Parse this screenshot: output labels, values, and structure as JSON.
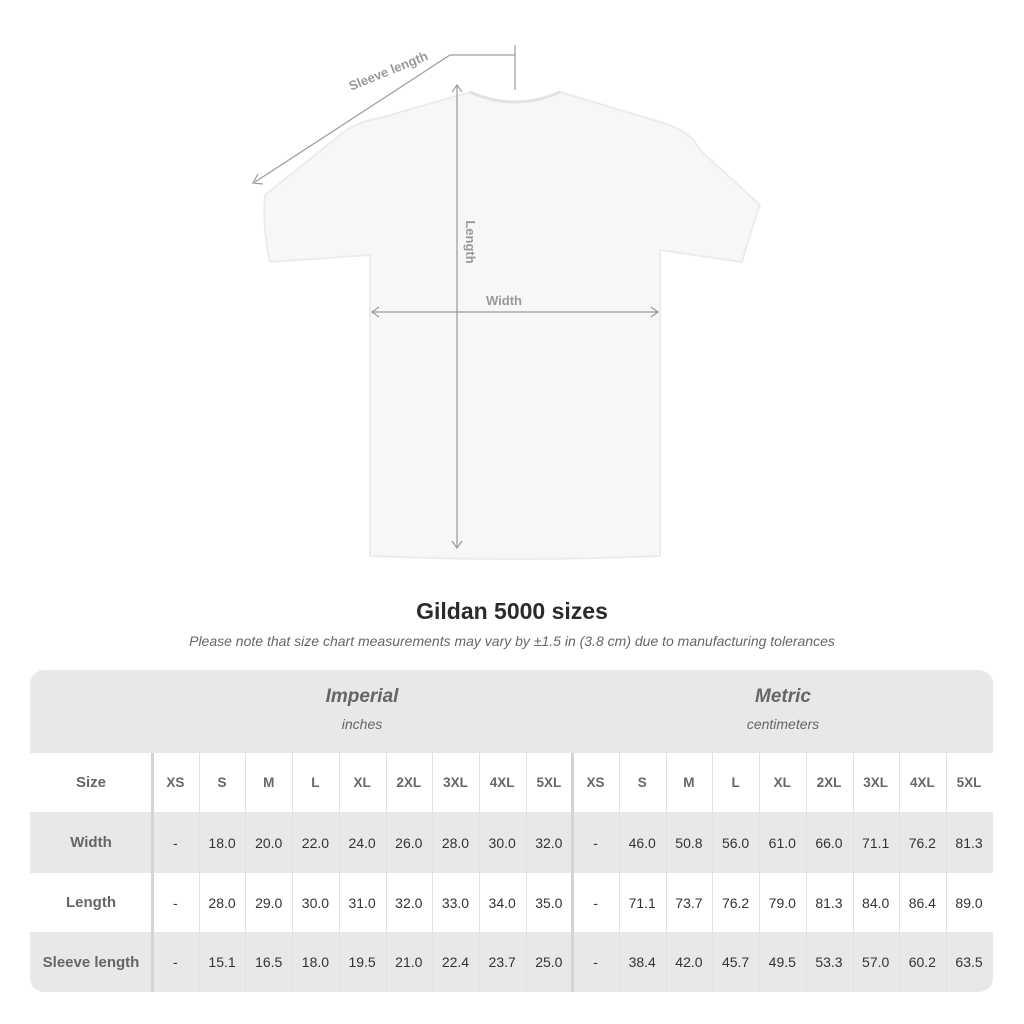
{
  "diagram_labels": {
    "sleeve_length": "Sleeve length",
    "length": "Length",
    "width": "Width"
  },
  "title": "Gildan 5000 sizes",
  "note": "Please note that size chart measurements may vary by ±1.5 in (3.8 cm) due to manufacturing tolerances",
  "groups": {
    "imperial": {
      "title": "Imperial",
      "unit": "inches"
    },
    "metric": {
      "title": "Metric",
      "unit": "centimeters"
    }
  },
  "size_label": "Size",
  "sizes": [
    "XS",
    "S",
    "M",
    "L",
    "XL",
    "2XL",
    "3XL",
    "4XL",
    "5XL"
  ],
  "rows": [
    {
      "label": "Width",
      "imperial": [
        "-",
        "18.0",
        "20.0",
        "22.0",
        "24.0",
        "26.0",
        "28.0",
        "30.0",
        "32.0"
      ],
      "metric": [
        "-",
        "46.0",
        "50.8",
        "56.0",
        "61.0",
        "66.0",
        "71.1",
        "76.2",
        "81.3"
      ]
    },
    {
      "label": "Length",
      "imperial": [
        "-",
        "28.0",
        "29.0",
        "30.0",
        "31.0",
        "32.0",
        "33.0",
        "34.0",
        "35.0"
      ],
      "metric": [
        "-",
        "71.1",
        "73.7",
        "76.2",
        "79.0",
        "81.3",
        "84.0",
        "86.4",
        "89.0"
      ]
    },
    {
      "label": "Sleeve length",
      "imperial": [
        "-",
        "15.1",
        "16.5",
        "18.0",
        "19.5",
        "21.0",
        "22.4",
        "23.7",
        "25.0"
      ],
      "metric": [
        "-",
        "38.4",
        "42.0",
        "45.7",
        "49.5",
        "53.3",
        "57.0",
        "60.2",
        "63.5"
      ]
    }
  ]
}
